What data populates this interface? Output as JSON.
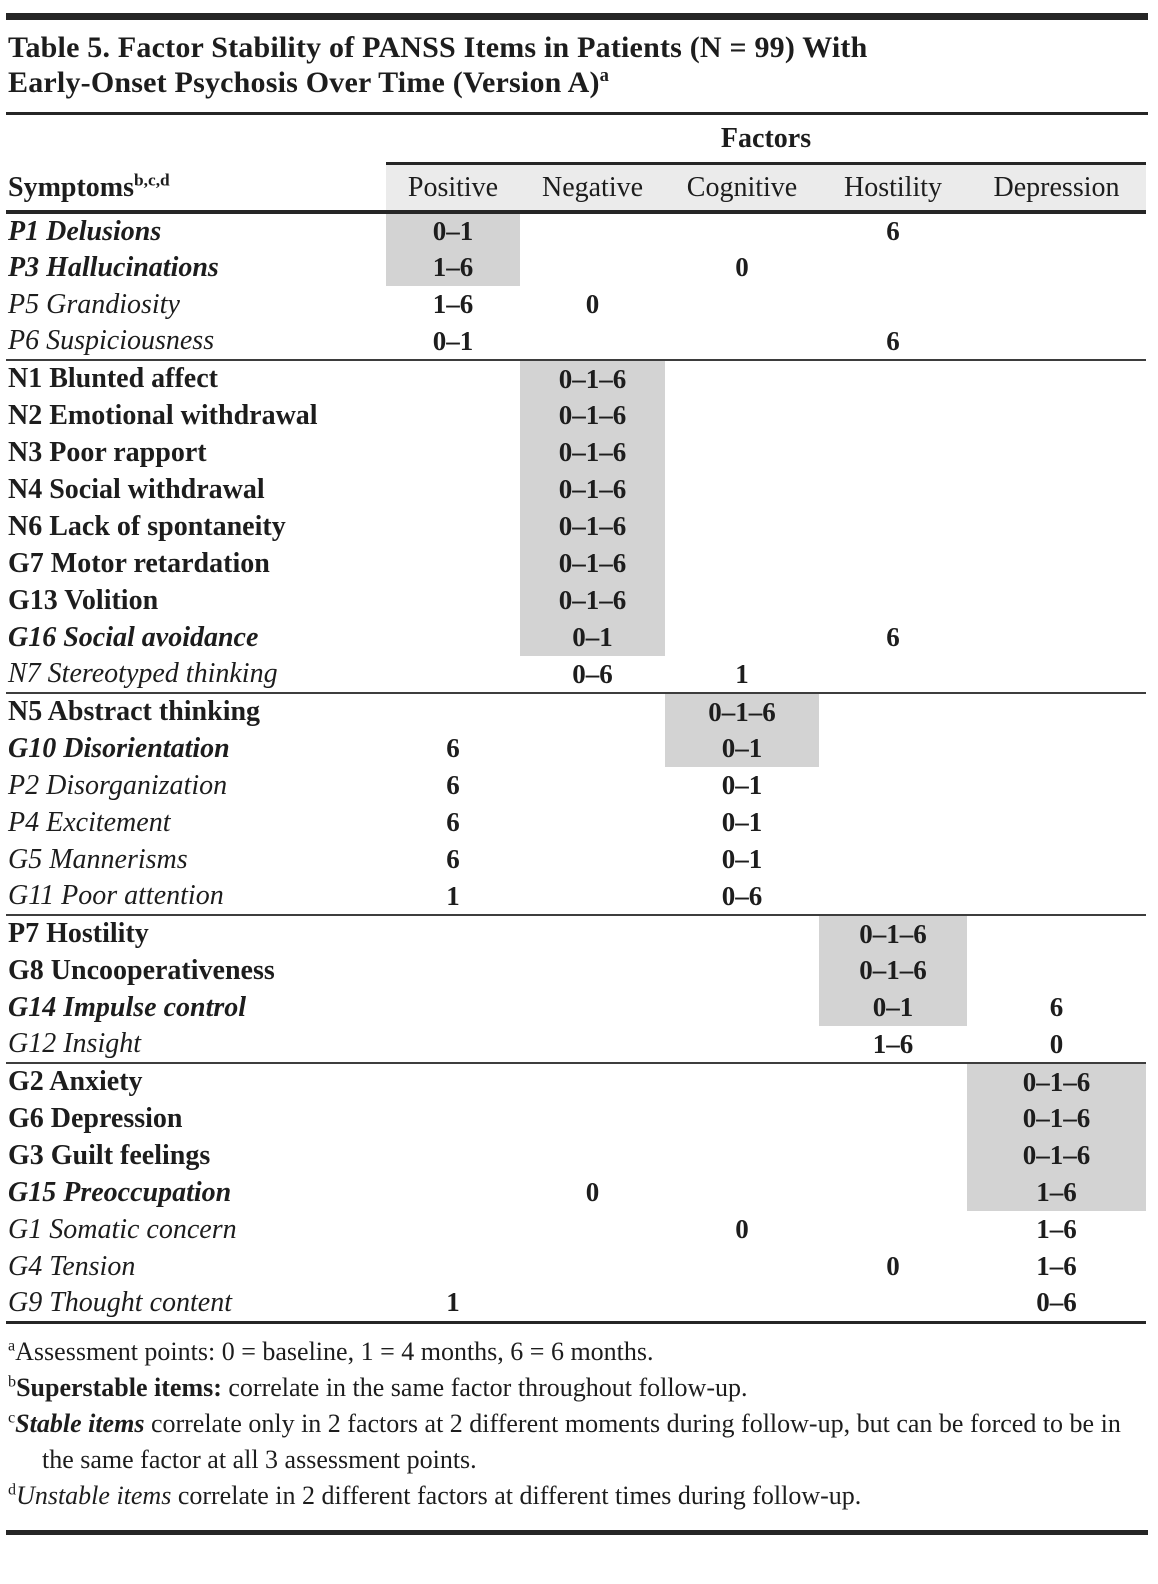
{
  "title": {
    "line1": "Table 5. Factor Stability of PANSS Items in Patients (N = 99) With",
    "line2": "Early-Onset Psychosis Over Time (Version A)",
    "superscript": "a"
  },
  "header": {
    "group_label": "Factors",
    "symptoms_label": "Symptoms",
    "symptoms_superscript": "b,c,d",
    "columns": [
      "Positive",
      "Negative",
      "Cognitive",
      "Hostility",
      "Depression"
    ]
  },
  "colors": {
    "shaded_cell": "#d3d3d3",
    "header_band": "#ebebeb",
    "rule": "#262626",
    "text": "#1d1d1d"
  },
  "legend_styles": {
    "superstable": "bold",
    "stable": "bold-italic",
    "unstable": "italic"
  },
  "groups": [
    {
      "rows": [
        {
          "symptom": "P1 Delusions",
          "style": "stable",
          "values": [
            "0–1",
            "",
            "",
            "6",
            ""
          ],
          "shaded": [
            true,
            false,
            false,
            false,
            false
          ]
        },
        {
          "symptom": "P3 Hallucinations",
          "style": "stable",
          "values": [
            "1–6",
            "",
            "0",
            "",
            ""
          ],
          "shaded": [
            true,
            false,
            false,
            false,
            false
          ]
        },
        {
          "symptom": "P5 Grandiosity",
          "style": "unstable",
          "values": [
            "1–6",
            "0",
            "",
            "",
            ""
          ],
          "shaded": [
            false,
            false,
            false,
            false,
            false
          ]
        },
        {
          "symptom": "P6 Suspiciousness",
          "style": "unstable",
          "values": [
            "0–1",
            "",
            "",
            "6",
            ""
          ],
          "shaded": [
            false,
            false,
            false,
            false,
            false
          ]
        }
      ]
    },
    {
      "rows": [
        {
          "symptom": "N1 Blunted affect",
          "style": "superstable",
          "values": [
            "",
            "0–1–6",
            "",
            "",
            ""
          ],
          "shaded": [
            false,
            true,
            false,
            false,
            false
          ]
        },
        {
          "symptom": "N2 Emotional withdrawal",
          "style": "superstable",
          "values": [
            "",
            "0–1–6",
            "",
            "",
            ""
          ],
          "shaded": [
            false,
            true,
            false,
            false,
            false
          ]
        },
        {
          "symptom": "N3 Poor rapport",
          "style": "superstable",
          "values": [
            "",
            "0–1–6",
            "",
            "",
            ""
          ],
          "shaded": [
            false,
            true,
            false,
            false,
            false
          ]
        },
        {
          "symptom": "N4 Social withdrawal",
          "style": "superstable",
          "values": [
            "",
            "0–1–6",
            "",
            "",
            ""
          ],
          "shaded": [
            false,
            true,
            false,
            false,
            false
          ]
        },
        {
          "symptom": "N6 Lack of spontaneity",
          "style": "superstable",
          "values": [
            "",
            "0–1–6",
            "",
            "",
            ""
          ],
          "shaded": [
            false,
            true,
            false,
            false,
            false
          ]
        },
        {
          "symptom": "G7 Motor retardation",
          "style": "superstable",
          "values": [
            "",
            "0–1–6",
            "",
            "",
            ""
          ],
          "shaded": [
            false,
            true,
            false,
            false,
            false
          ]
        },
        {
          "symptom": "G13 Volition",
          "style": "superstable",
          "values": [
            "",
            "0–1–6",
            "",
            "",
            ""
          ],
          "shaded": [
            false,
            true,
            false,
            false,
            false
          ]
        },
        {
          "symptom": "G16 Social avoidance",
          "style": "stable",
          "values": [
            "",
            "0–1",
            "",
            "6",
            ""
          ],
          "shaded": [
            false,
            true,
            false,
            false,
            false
          ]
        },
        {
          "symptom": "N7 Stereotyped thinking",
          "style": "unstable",
          "values": [
            "",
            "0–6",
            "1",
            "",
            ""
          ],
          "shaded": [
            false,
            false,
            false,
            false,
            false
          ]
        }
      ]
    },
    {
      "rows": [
        {
          "symptom": "N5 Abstract thinking",
          "style": "superstable",
          "values": [
            "",
            "",
            "0–1–6",
            "",
            ""
          ],
          "shaded": [
            false,
            false,
            true,
            false,
            false
          ]
        },
        {
          "symptom": "G10 Disorientation",
          "style": "stable",
          "values": [
            "6",
            "",
            "0–1",
            "",
            ""
          ],
          "shaded": [
            false,
            false,
            true,
            false,
            false
          ]
        },
        {
          "symptom": "P2 Disorganization",
          "style": "unstable",
          "values": [
            "6",
            "",
            "0–1",
            "",
            ""
          ],
          "shaded": [
            false,
            false,
            false,
            false,
            false
          ]
        },
        {
          "symptom": "P4 Excitement",
          "style": "unstable",
          "values": [
            "6",
            "",
            "0–1",
            "",
            ""
          ],
          "shaded": [
            false,
            false,
            false,
            false,
            false
          ]
        },
        {
          "symptom": "G5 Mannerisms",
          "style": "unstable",
          "values": [
            "6",
            "",
            "0–1",
            "",
            ""
          ],
          "shaded": [
            false,
            false,
            false,
            false,
            false
          ]
        },
        {
          "symptom": "G11 Poor attention",
          "style": "unstable",
          "values": [
            "1",
            "",
            "0–6",
            "",
            ""
          ],
          "shaded": [
            false,
            false,
            false,
            false,
            false
          ]
        }
      ]
    },
    {
      "rows": [
        {
          "symptom": "P7 Hostility",
          "style": "superstable",
          "values": [
            "",
            "",
            "",
            "0–1–6",
            ""
          ],
          "shaded": [
            false,
            false,
            false,
            true,
            false
          ]
        },
        {
          "symptom": "G8 Uncooperativeness",
          "style": "superstable",
          "values": [
            "",
            "",
            "",
            "0–1–6",
            ""
          ],
          "shaded": [
            false,
            false,
            false,
            true,
            false
          ]
        },
        {
          "symptom": "G14 Impulse control",
          "style": "stable",
          "values": [
            "",
            "",
            "",
            "0–1",
            "6"
          ],
          "shaded": [
            false,
            false,
            false,
            true,
            false
          ]
        },
        {
          "symptom": "G12 Insight",
          "style": "unstable",
          "values": [
            "",
            "",
            "",
            "1–6",
            "0"
          ],
          "shaded": [
            false,
            false,
            false,
            false,
            false
          ]
        }
      ]
    },
    {
      "rows": [
        {
          "symptom": "G2 Anxiety",
          "style": "superstable",
          "values": [
            "",
            "",
            "",
            "",
            "0–1–6"
          ],
          "shaded": [
            false,
            false,
            false,
            false,
            true
          ]
        },
        {
          "symptom": "G6 Depression",
          "style": "superstable",
          "values": [
            "",
            "",
            "",
            "",
            "0–1–6"
          ],
          "shaded": [
            false,
            false,
            false,
            false,
            true
          ]
        },
        {
          "symptom": "G3 Guilt feelings",
          "style": "superstable",
          "values": [
            "",
            "",
            "",
            "",
            "0–1–6"
          ],
          "shaded": [
            false,
            false,
            false,
            false,
            true
          ]
        },
        {
          "symptom": "G15 Preoccupation",
          "style": "stable",
          "values": [
            "",
            "0",
            "",
            "",
            "1–6"
          ],
          "shaded": [
            false,
            false,
            false,
            false,
            true
          ]
        },
        {
          "symptom": "G1 Somatic concern",
          "style": "unstable",
          "values": [
            "",
            "",
            "0",
            "",
            "1–6"
          ],
          "shaded": [
            false,
            false,
            false,
            false,
            false
          ]
        },
        {
          "symptom": "G4 Tension",
          "style": "unstable",
          "values": [
            "",
            "",
            "",
            "0",
            "1–6"
          ],
          "shaded": [
            false,
            false,
            false,
            false,
            false
          ]
        },
        {
          "symptom": "G9 Thought content",
          "style": "unstable",
          "values": [
            "1",
            "",
            "",
            "",
            "0–6"
          ],
          "shaded": [
            false,
            false,
            false,
            false,
            false
          ]
        }
      ]
    }
  ],
  "footnotes": [
    {
      "marker": "a",
      "segments": [
        {
          "text": "Assessment points: 0 = baseline, 1 = 4 months, 6 = 6 months.",
          "style": "normal"
        }
      ]
    },
    {
      "marker": "b",
      "segments": [
        {
          "text": "Superstable items:",
          "style": "bold"
        },
        {
          "text": " correlate in the same factor throughout follow-up.",
          "style": "normal"
        }
      ]
    },
    {
      "marker": "c",
      "segments": [
        {
          "text": "Stable items",
          "style": "bolditalic"
        },
        {
          "text": " correlate only in 2 factors at 2 different moments during follow-up, but can be forced to be in the same factor at all 3 assessment points.",
          "style": "normal"
        }
      ]
    },
    {
      "marker": "d",
      "segments": [
        {
          "text": "Unstable items",
          "style": "italic"
        },
        {
          "text": " correlate in 2 different factors at different times during follow-up.",
          "style": "normal"
        }
      ]
    }
  ]
}
